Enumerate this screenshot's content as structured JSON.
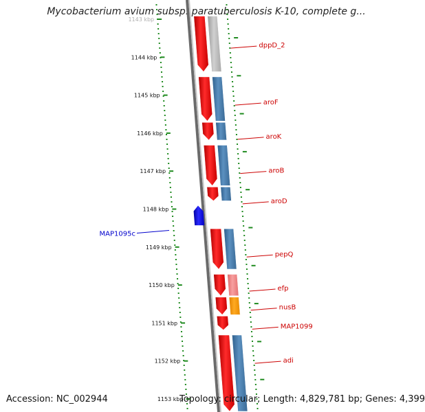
{
  "title": "Mycobacterium avium subsp. paratuberculosis K-10, complete g...",
  "footer": {
    "accession": "Accession: NC_002944",
    "topology": "Topology: circular; Length: 4,829,781 bp; Genes: 4,399"
  },
  "colors": {
    "axis_dots": "#1e8a1e",
    "forward_gene": "#ee1111",
    "reverse_gene": "#1a1aee",
    "cds_steel": "#4a7fae",
    "cds_gray": "#b8b8b8",
    "cds_pink": "#f08080",
    "cds_orange": "#ff9900",
    "label_red": "#cc0000",
    "label_blue": "#0000cc"
  },
  "scale": {
    "unit": "kbp",
    "ticks": [
      {
        "kbp": 1143,
        "label": "1143 kbp",
        "faded": true
      },
      {
        "kbp": 1144,
        "label": "1144 kbp"
      },
      {
        "kbp": 1145,
        "label": "1145 kbp"
      },
      {
        "kbp": 1146,
        "label": "1146 kbp"
      },
      {
        "kbp": 1147,
        "label": "1147 kbp"
      },
      {
        "kbp": 1148,
        "label": "1148 kbp"
      },
      {
        "kbp": 1149,
        "label": "1149 kbp"
      },
      {
        "kbp": 1150,
        "label": "1150 kbp"
      },
      {
        "kbp": 1151,
        "label": "1151 kbp"
      },
      {
        "kbp": 1152,
        "label": "1152 kbp"
      },
      {
        "kbp": 1153,
        "label": "1153 kbp"
      }
    ]
  },
  "genes": [
    {
      "name": "dppD_2",
      "strand": "+",
      "start_kbp": 1142.9,
      "end_kbp": 1144.4,
      "cds_color": "gray",
      "label_kbp": 1143.4
    },
    {
      "name": "aroF",
      "strand": "+",
      "start_kbp": 1144.5,
      "end_kbp": 1145.7,
      "cds_color": "steel",
      "label_kbp": 1144.9
    },
    {
      "name": "aroK",
      "strand": "+",
      "start_kbp": 1145.7,
      "end_kbp": 1146.2,
      "cds_color": "steel",
      "label_kbp": 1145.8
    },
    {
      "name": "aroB",
      "strand": "+",
      "start_kbp": 1146.3,
      "end_kbp": 1147.4,
      "cds_color": "steel",
      "label_kbp": 1146.7
    },
    {
      "name": "aroD",
      "strand": "+",
      "start_kbp": 1147.4,
      "end_kbp": 1147.8,
      "cds_color": "steel",
      "label_kbp": 1147.5
    },
    {
      "name": "MAP1095c",
      "strand": "-",
      "start_kbp": 1147.8,
      "end_kbp": 1148.5,
      "cds_color": "none",
      "label_kbp": 1148.2
    },
    {
      "name": "pepQ",
      "strand": "+",
      "start_kbp": 1148.5,
      "end_kbp": 1149.6,
      "cds_color": "steel",
      "label_kbp": 1148.9
    },
    {
      "name": "efp",
      "strand": "+",
      "start_kbp": 1149.7,
      "end_kbp": 1150.3,
      "cds_color": "pink",
      "label_kbp": 1149.8
    },
    {
      "name": "nusB",
      "strand": "+",
      "start_kbp": 1150.3,
      "end_kbp": 1150.8,
      "cds_color": "orange",
      "label_kbp": 1150.3
    },
    {
      "name": "MAP1099",
      "strand": "+",
      "start_kbp": 1150.8,
      "end_kbp": 1151.2,
      "cds_color": "none",
      "label_kbp": 1150.8
    },
    {
      "name": "adi",
      "strand": "+",
      "start_kbp": 1151.3,
      "end_kbp": 1153.4,
      "cds_color": "steel",
      "label_kbp": 1151.7
    }
  ]
}
